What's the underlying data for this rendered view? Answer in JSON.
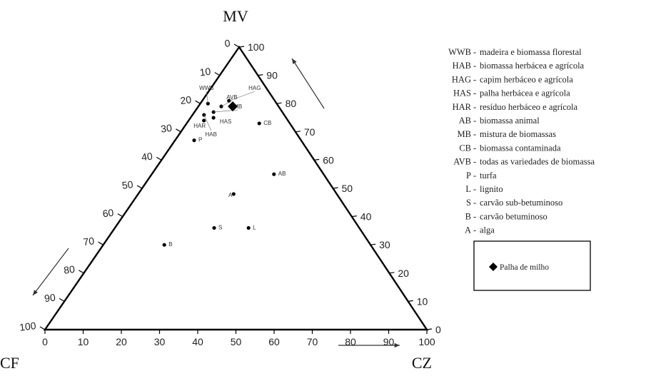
{
  "chart_data": {
    "type": "scatter",
    "subtype": "ternary",
    "vertices": {
      "top": "MV",
      "bottom_left": "CF",
      "bottom_right": "CZ"
    },
    "axes": {
      "MV": {
        "ticks": [
          0,
          10,
          20,
          30,
          40,
          50,
          60,
          70,
          80,
          90,
          100
        ]
      },
      "CF": {
        "ticks": [
          0,
          10,
          20,
          30,
          40,
          50,
          60,
          70,
          80,
          90,
          100
        ]
      },
      "CZ": {
        "ticks": [
          0,
          10,
          20,
          30,
          40,
          50,
          60,
          70,
          80,
          90,
          100
        ]
      }
    },
    "points": [
      {
        "label": "WWB",
        "MV": 80,
        "CZ": 2,
        "CF": 18
      },
      {
        "label": "HAG",
        "MV": 81,
        "CZ": 7,
        "CF": 12
      },
      {
        "label": "AVB",
        "MV": 79,
        "CZ": 6,
        "CF": 15
      },
      {
        "label": "MB",
        "MV": 77,
        "CZ": 5,
        "CF": 18
      },
      {
        "label": "HAS",
        "MV": 75,
        "CZ": 6,
        "CF": 19
      },
      {
        "label": "HAR",
        "MV": 74,
        "CZ": 4,
        "CF": 22
      },
      {
        "label": "HAB",
        "MV": 76,
        "CZ": 3,
        "CF": 21
      },
      {
        "label": "CB",
        "MV": 73,
        "CZ": 19,
        "CF": 8
      },
      {
        "label": "P",
        "MV": 67,
        "CZ": 5,
        "CF": 28
      },
      {
        "label": "AB",
        "MV": 55,
        "CZ": 32,
        "CF": 13
      },
      {
        "label": "A",
        "MV": 48,
        "CZ": 25,
        "CF": 27
      },
      {
        "label": "L",
        "MV": 36,
        "CZ": 35,
        "CF": 29
      },
      {
        "label": "S",
        "MV": 36,
        "CZ": 26,
        "CF": 38
      },
      {
        "label": "B",
        "MV": 30,
        "CZ": 16,
        "CF": 54
      }
    ],
    "highlight": {
      "label": "Palha de milho",
      "MV": 79,
      "CZ": 9,
      "CF": 12
    }
  },
  "legend": {
    "items": [
      {
        "code": "WWB",
        "desc": "madeira e biomassa florestal"
      },
      {
        "code": "HAB",
        "desc": "biomassa herbácea e agrícola"
      },
      {
        "code": "HAG",
        "desc": "capim herbáceo e agrícola"
      },
      {
        "code": "HAS",
        "desc": "palha herbácea e agrícola"
      },
      {
        "code": "HAR",
        "desc": "resíduo herbáceo e agrícola"
      },
      {
        "code": "AB",
        "desc": "biomassa animal"
      },
      {
        "code": "MB",
        "desc": "mistura de biomassas"
      },
      {
        "code": "CB",
        "desc": "biomassa contaminada"
      },
      {
        "code": "AVB",
        "desc": "todas as variedades de biomassa"
      },
      {
        "code": "P",
        "desc": "turfa"
      },
      {
        "code": "L",
        "desc": "lignito"
      },
      {
        "code": "S",
        "desc": "carvão sub-betuminoso"
      },
      {
        "code": "B",
        "desc": "carvão betuminoso"
      },
      {
        "code": "A",
        "desc": "alga"
      }
    ],
    "highlight_label": "Palha de milho"
  }
}
